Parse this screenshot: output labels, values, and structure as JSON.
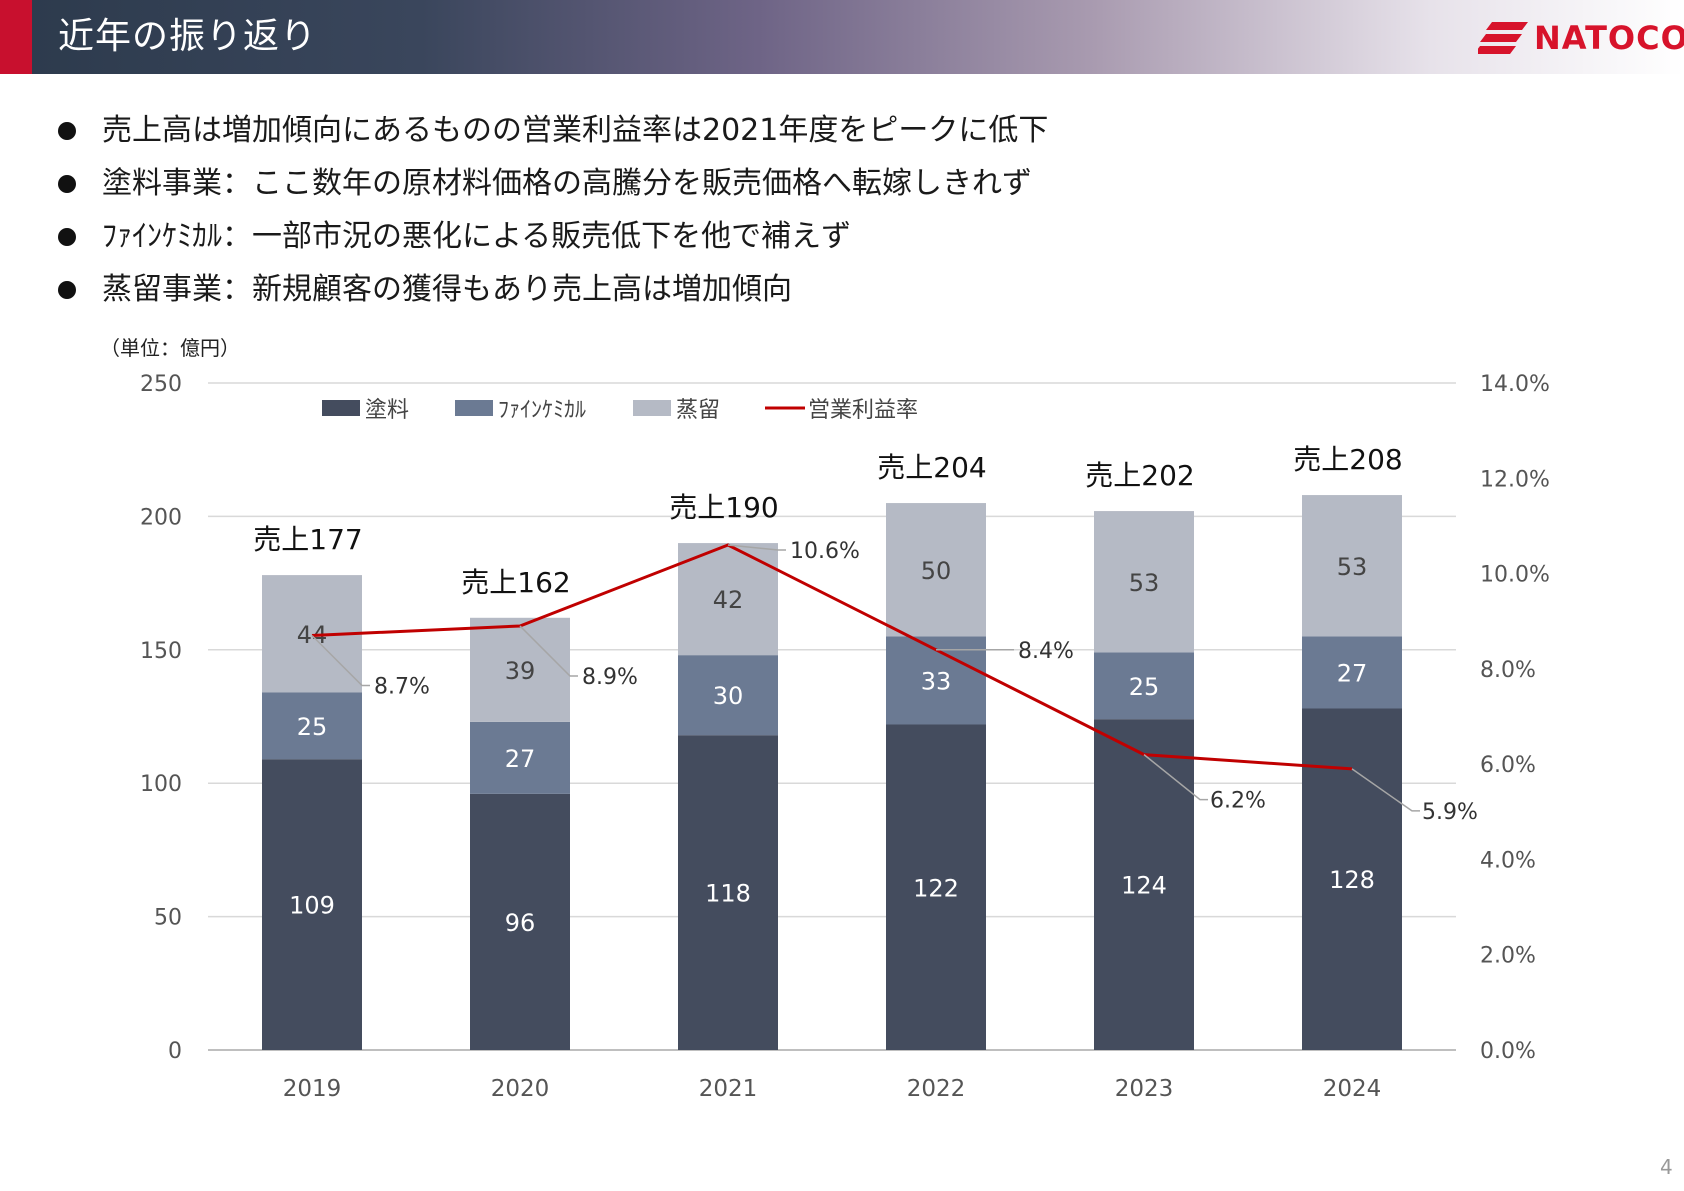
{
  "header": {
    "title": "近年の振り返り",
    "logo_text": "NATOCO",
    "logo_icon": "natoco-stripes-icon"
  },
  "bullets": [
    "売上高は増加傾向にあるものの営業利益率は2021年度をピークに低下",
    "塗料事業：ここ数年の原材料価格の高騰分を販売価格へ転嫁しきれず",
    "ﾌｧｲﾝｹﾐｶﾙ：一部市況の悪化による販売低下を他で補えず",
    "蒸留事業：新規顧客の獲得もあり売上高は増加傾向"
  ],
  "chart_data": {
    "type": "bar",
    "stacked": true,
    "unit_label": "（単位：億円）",
    "categories": [
      "2019",
      "2020",
      "2021",
      "2022",
      "2023",
      "2024"
    ],
    "series": [
      {
        "name": "塗料",
        "values": [
          109,
          96,
          118,
          122,
          124,
          128
        ],
        "color": "#444c5e"
      },
      {
        "name": "ﾌｧｲﾝｹﾐｶﾙ",
        "values": [
          25,
          27,
          30,
          33,
          25,
          27
        ],
        "color": "#6b7a93"
      },
      {
        "name": "蒸留",
        "values": [
          44,
          39,
          42,
          50,
          53,
          53
        ],
        "color": "#b5bac5"
      }
    ],
    "totals": [
      "売上177",
      "売上162",
      "売上190",
      "売上204",
      "売上202",
      "売上208"
    ],
    "line_series": {
      "name": "営業利益率",
      "values": [
        8.7,
        8.9,
        10.6,
        8.4,
        6.2,
        5.9
      ],
      "labels": [
        "8.7%",
        "8.9%",
        "10.6%",
        "8.4%",
        "6.2%",
        "5.9%"
      ],
      "color": "#c00000"
    },
    "y_left": {
      "min": 0,
      "max": 250,
      "ticks": [
        "0",
        "50",
        "100",
        "150",
        "200",
        "250"
      ]
    },
    "y_right": {
      "min": 0,
      "max": 14,
      "ticks": [
        "0.0%",
        "2.0%",
        "4.0%",
        "6.0%",
        "8.0%",
        "10.0%",
        "12.0%",
        "14.0%"
      ]
    },
    "grid": true,
    "legend_position": "top"
  },
  "page_number": "4"
}
